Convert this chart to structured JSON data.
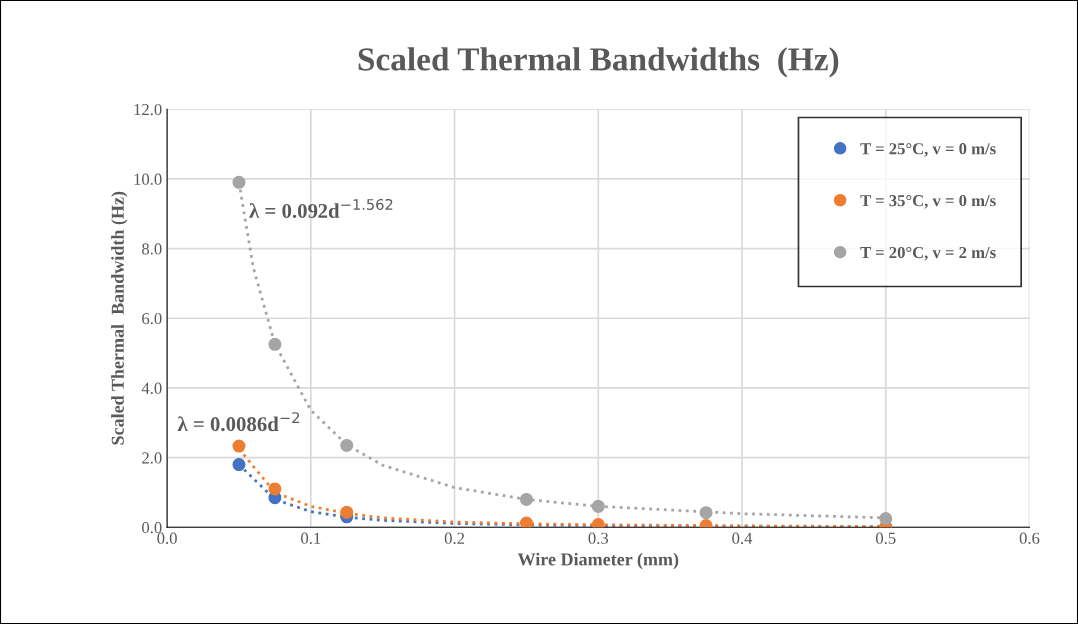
{
  "chart_data": {
    "type": "scatter",
    "title": "Scaled Thermal Bandwidths  (Hz)",
    "xlabel": "Wire Diameter (mm)",
    "ylabel": "Scaled Thermal  Bandwidth (Hz)",
    "x": [
      0.05,
      0.075,
      0.125,
      0.25,
      0.3,
      0.375,
      0.5
    ],
    "series": [
      {
        "name": "T = 25°C, v = 0 m/s",
        "color": "#4472c4",
        "values": [
          1.8,
          0.85,
          0.3,
          null,
          null,
          null,
          null
        ]
      },
      {
        "name": "T = 35°C, v = 0 m/s",
        "color": "#ed7d31",
        "values": [
          2.33,
          1.1,
          0.43,
          0.12,
          0.08,
          0.05,
          0.02
        ]
      },
      {
        "name": "T = 20°C, v = 2 m/s",
        "color": "#a5a5a5",
        "values": [
          9.9,
          5.25,
          2.35,
          0.8,
          0.6,
          0.42,
          0.25
        ]
      },
      {
        "type": "line",
        "color": "#4472c4",
        "line_style": "dotted",
        "marker": "none",
        "x": [
          0.05,
          0.075,
          0.1,
          0.125,
          0.15,
          0.2,
          0.25,
          0.3,
          0.4,
          0.5
        ],
        "values": [
          1.8,
          0.8,
          0.45,
          0.29,
          0.2,
          0.11,
          0.07,
          0.05,
          0.03,
          0.02
        ]
      },
      {
        "type": "line",
        "color": "#ed7d31",
        "line_style": "dotted",
        "marker": "none",
        "x": [
          0.05,
          0.075,
          0.1,
          0.125,
          0.15,
          0.2,
          0.25,
          0.3,
          0.4,
          0.5
        ],
        "values": [
          2.25,
          1.0,
          0.6,
          0.4,
          0.27,
          0.15,
          0.1,
          0.07,
          0.04,
          0.02
        ]
      },
      {
        "type": "line",
        "color": "#a5a5a5",
        "line_style": "dotted",
        "marker": "none",
        "x": [
          0.05,
          0.06,
          0.075,
          0.1,
          0.125,
          0.15,
          0.2,
          0.25,
          0.3,
          0.4,
          0.5
        ],
        "values": [
          9.9,
          7.45,
          5.26,
          3.36,
          2.37,
          1.78,
          1.14,
          0.8,
          0.6,
          0.39,
          0.27
        ]
      }
    ],
    "annotations": [
      "λ = 0.092d$^{−1.562}$",
      "λ = 0.0086d$^{−2}$"
    ],
    "xlim": [
      0.0,
      0.6
    ],
    "xticks": [
      {
        "value": 0,
        "label": "0.0"
      },
      0.1,
      0.2,
      0.3,
      0.4,
      0.5,
      0.6
    ],
    "ylim": [
      0.0,
      12.0
    ],
    "yticks": [
      {
        "value": 0,
        "label": "0.0"
      },
      {
        "value": 2,
        "label": "2.0"
      },
      {
        "value": 4,
        "label": "4.0"
      },
      {
        "value": 6,
        "label": "6.0"
      },
      {
        "value": 8,
        "label": "8.0"
      },
      {
        "value": 10,
        "label": "10.0"
      },
      {
        "value": 12,
        "label": "12.0"
      }
    ],
    "grid": true,
    "legend": "top right",
    "marker": "circle"
  }
}
